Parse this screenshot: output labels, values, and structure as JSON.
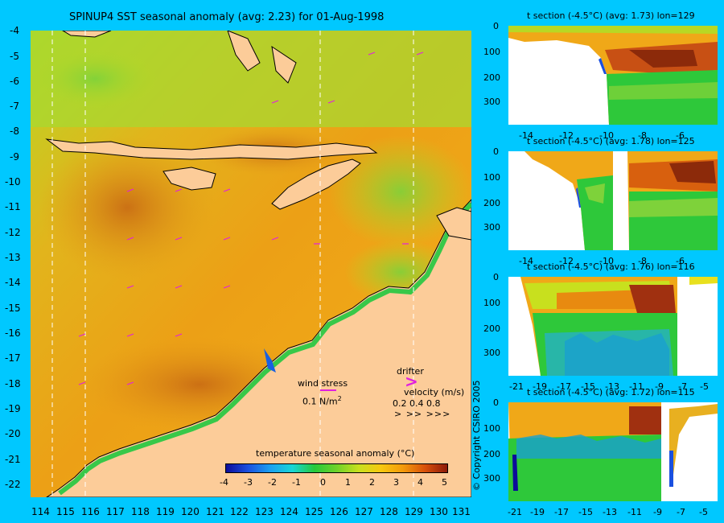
{
  "main_title": "SPINUP4 SST seasonal anomaly (avg: 2.23) for 01-Aug-1998",
  "map": {
    "y_ticks": [
      "-4",
      "-5",
      "-6",
      "-7",
      "-8",
      "-9",
      "-10",
      "-11",
      "-12",
      "-13",
      "-14",
      "-15",
      "-16",
      "-17",
      "-18",
      "-19",
      "-20",
      "-21",
      "-22"
    ],
    "x_ticks": [
      "114",
      "115",
      "116",
      "117",
      "118",
      "119",
      "120",
      "121",
      "122",
      "123",
      "124",
      "125",
      "126",
      "127",
      "128",
      "129",
      "130",
      "131"
    ],
    "xlim": [
      113.6,
      131.4
    ],
    "ylim": [
      -22.5,
      -4
    ],
    "section_lines_lon": [
      114.5,
      115.8,
      125.4,
      129.2
    ]
  },
  "legend": {
    "wind_stress_label": "wind stress",
    "wind_stress_value": "0.1 N/m",
    "wind_stress_exp": "2",
    "drifter_label": "drifter",
    "velocity_label": "velocity (m/s)",
    "velocity_values": "0.2 0.4 0.8",
    "velocity_arrows": ">   >>  >>>"
  },
  "colorbar": {
    "title": "temperature seasonal anomaly (°C)",
    "ticks": [
      "-4",
      "-3",
      "-2",
      "-1",
      "0",
      "1",
      "2",
      "3",
      "4",
      "5"
    ]
  },
  "copyright": "© Copyright CSIRO 2005",
  "chart_data": [
    {
      "type": "heatmap",
      "title": "SPINUP4 SST seasonal anomaly (avg: 2.23) for 01-Aug-1998",
      "x_ticks": [
        114,
        115,
        116,
        117,
        118,
        119,
        120,
        121,
        122,
        123,
        124,
        125,
        126,
        127,
        128,
        129,
        130,
        131
      ],
      "y_ticks": [
        -4,
        -5,
        -6,
        -7,
        -8,
        -9,
        -10,
        -11,
        -12,
        -13,
        -14,
        -15,
        -16,
        -17,
        -18,
        -19,
        -20,
        -21,
        -22
      ],
      "colorbar": {
        "label": "temperature seasonal anomaly (°C)",
        "range": [
          -4,
          5
        ]
      }
    },
    {
      "type": "heatmap",
      "title": "t section (-4.5°C) (avg: 1.73) lon=129",
      "x_ticks": [
        -14,
        -12,
        -10,
        -8,
        -6
      ],
      "y_ticks": [
        0,
        100,
        200,
        300
      ],
      "ylim": [
        400,
        0
      ]
    },
    {
      "type": "heatmap",
      "title": "t section (-4.5°C) (avg: 1.78) lon=125",
      "x_ticks": [
        -14,
        -12,
        -10,
        -8,
        -6
      ],
      "y_ticks": [
        0,
        100,
        200,
        300
      ],
      "ylim": [
        400,
        0
      ]
    },
    {
      "type": "heatmap",
      "title": "t section (-4.5°C) (avg: 1.76) lon=116",
      "x_ticks": [
        -21,
        -19,
        -17,
        -15,
        -13,
        -11,
        -9,
        -7,
        -5
      ],
      "y_ticks": [
        0,
        100,
        200,
        300
      ],
      "ylim": [
        400,
        0
      ]
    },
    {
      "type": "heatmap",
      "title": "t section (-4.5°C) (avg: 1.72) lon=115",
      "x_ticks": [
        -21,
        -19,
        -17,
        -15,
        -13,
        -11,
        -9,
        -7,
        -5
      ],
      "y_ticks": [
        0,
        100,
        200,
        300
      ],
      "ylim": [
        400,
        0
      ]
    }
  ],
  "sections": [
    {
      "title": "t section (-4.5°C) (avg: 1.73) lon=129",
      "y_ticks": [
        "0",
        "100",
        "200",
        "300"
      ],
      "x_ticks": [
        "-14",
        "-12",
        "-10",
        "-8",
        "-6"
      ]
    },
    {
      "title": "t section (-4.5°C) (avg: 1.78) lon=125",
      "y_ticks": [
        "0",
        "100",
        "200",
        "300"
      ],
      "x_ticks": [
        "-14",
        "-12",
        "-10",
        "-8",
        "-6"
      ]
    },
    {
      "title": "t section (-4.5°C) (avg: 1.76) lon=116",
      "y_ticks": [
        "0",
        "100",
        "200",
        "300"
      ],
      "x_ticks": [
        "-21",
        "-19",
        "-17",
        "-15",
        "-13",
        "-11",
        "-9",
        "-7",
        "-5"
      ]
    },
    {
      "title": "t section (-4.5°C) (avg: 1.72) lon=115",
      "y_ticks": [
        "0",
        "100",
        "200",
        "300"
      ],
      "x_ticks": [
        "-21",
        "-19",
        "-17",
        "-15",
        "-13",
        "-11",
        "-9",
        "-7",
        "-5"
      ]
    }
  ]
}
